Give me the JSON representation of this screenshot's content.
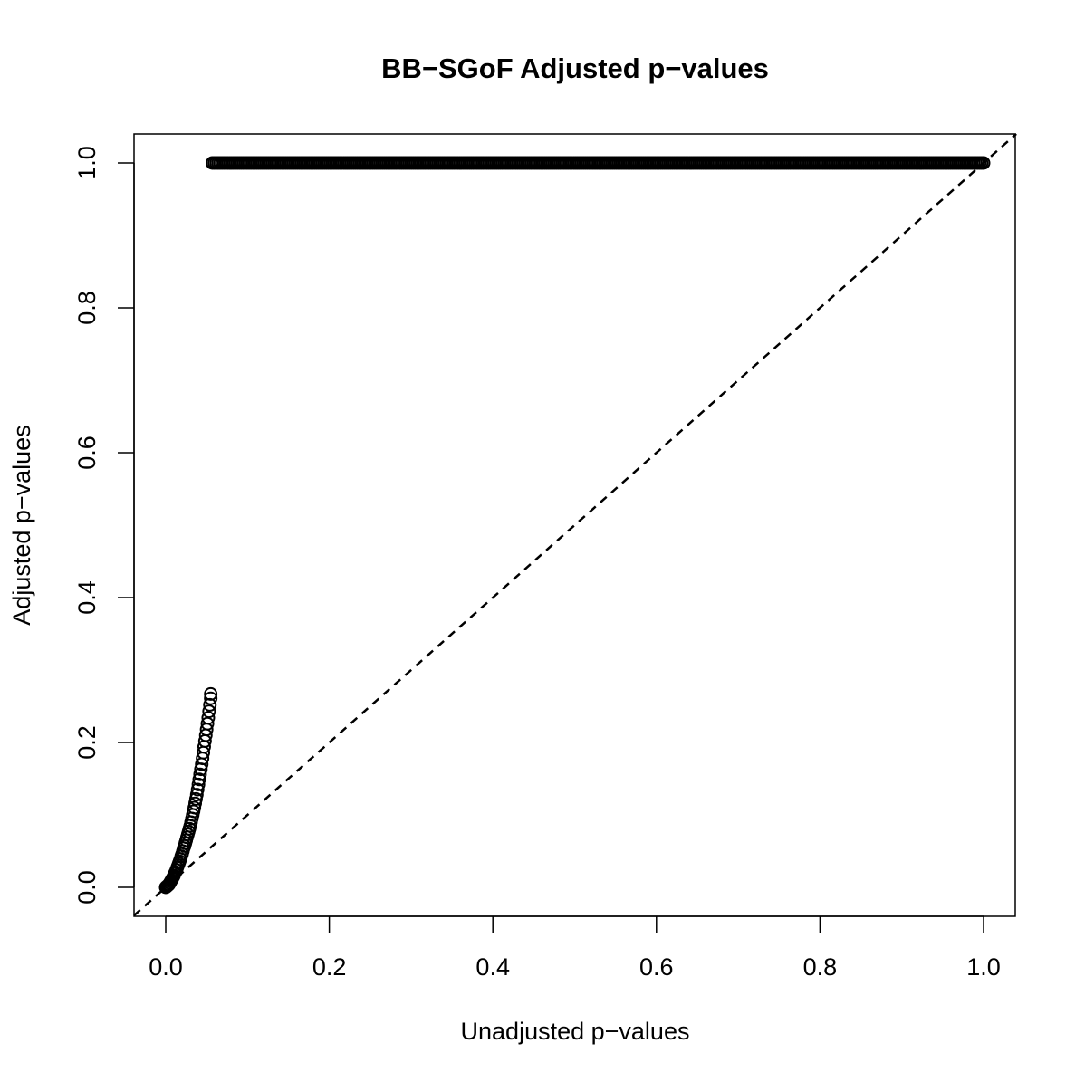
{
  "chart_data": {
    "type": "scatter",
    "title": "BB−SGoF Adjusted p−values",
    "xlabel": "Unadjusted p−values",
    "ylabel": "Adjusted p−values",
    "xlim": [
      0.0,
      1.0
    ],
    "ylim": [
      0.0,
      1.0
    ],
    "x_ticks": [
      "0.0",
      "0.2",
      "0.4",
      "0.6",
      "0.8",
      "1.0"
    ],
    "y_ticks": [
      "0.0",
      "0.2",
      "0.4",
      "0.6",
      "0.8",
      "1.0"
    ],
    "grid": false,
    "reference_line": {
      "style": "dashed",
      "slope": 1,
      "intercept": 0
    },
    "series": [
      {
        "marker": "open-circle",
        "color": "#000000",
        "points": [
          [
            0.0,
            0.0
          ],
          [
            0.001,
            0.001
          ],
          [
            0.002,
            0.002
          ],
          [
            0.003,
            0.003
          ],
          [
            0.004,
            0.004
          ],
          [
            0.005,
            0.006
          ],
          [
            0.006,
            0.008
          ],
          [
            0.007,
            0.01
          ],
          [
            0.008,
            0.012
          ],
          [
            0.009,
            0.014
          ],
          [
            0.01,
            0.016
          ],
          [
            0.011,
            0.019
          ],
          [
            0.012,
            0.021
          ],
          [
            0.013,
            0.024
          ],
          [
            0.014,
            0.027
          ],
          [
            0.015,
            0.03
          ],
          [
            0.016,
            0.033
          ],
          [
            0.017,
            0.036
          ],
          [
            0.018,
            0.039
          ],
          [
            0.019,
            0.043
          ],
          [
            0.02,
            0.046
          ],
          [
            0.021,
            0.05
          ],
          [
            0.022,
            0.054
          ],
          [
            0.023,
            0.057
          ],
          [
            0.024,
            0.061
          ],
          [
            0.025,
            0.065
          ],
          [
            0.026,
            0.069
          ],
          [
            0.027,
            0.073
          ],
          [
            0.028,
            0.077
          ],
          [
            0.029,
            0.081
          ],
          [
            0.03,
            0.085
          ],
          [
            0.031,
            0.09
          ],
          [
            0.032,
            0.095
          ],
          [
            0.033,
            0.1
          ],
          [
            0.034,
            0.105
          ],
          [
            0.035,
            0.11
          ],
          [
            0.036,
            0.116
          ],
          [
            0.037,
            0.122
          ],
          [
            0.038,
            0.128
          ],
          [
            0.039,
            0.135
          ],
          [
            0.04,
            0.142
          ],
          [
            0.041,
            0.149
          ],
          [
            0.042,
            0.156
          ],
          [
            0.043,
            0.163
          ],
          [
            0.044,
            0.17
          ],
          [
            0.045,
            0.178
          ],
          [
            0.046,
            0.186
          ],
          [
            0.047,
            0.194
          ],
          [
            0.048,
            0.202
          ],
          [
            0.049,
            0.21
          ],
          [
            0.05,
            0.218
          ],
          [
            0.051,
            0.226
          ],
          [
            0.052,
            0.234
          ],
          [
            0.053,
            0.243
          ],
          [
            0.054,
            0.252
          ],
          [
            0.055,
            0.261
          ],
          [
            0.055,
            0.267
          ]
        ]
      },
      {
        "marker": "open-circle",
        "color": "#000000",
        "x_range": [
          0.057,
          1.0
        ],
        "y_value": 1.0,
        "note": "dense band"
      }
    ]
  }
}
